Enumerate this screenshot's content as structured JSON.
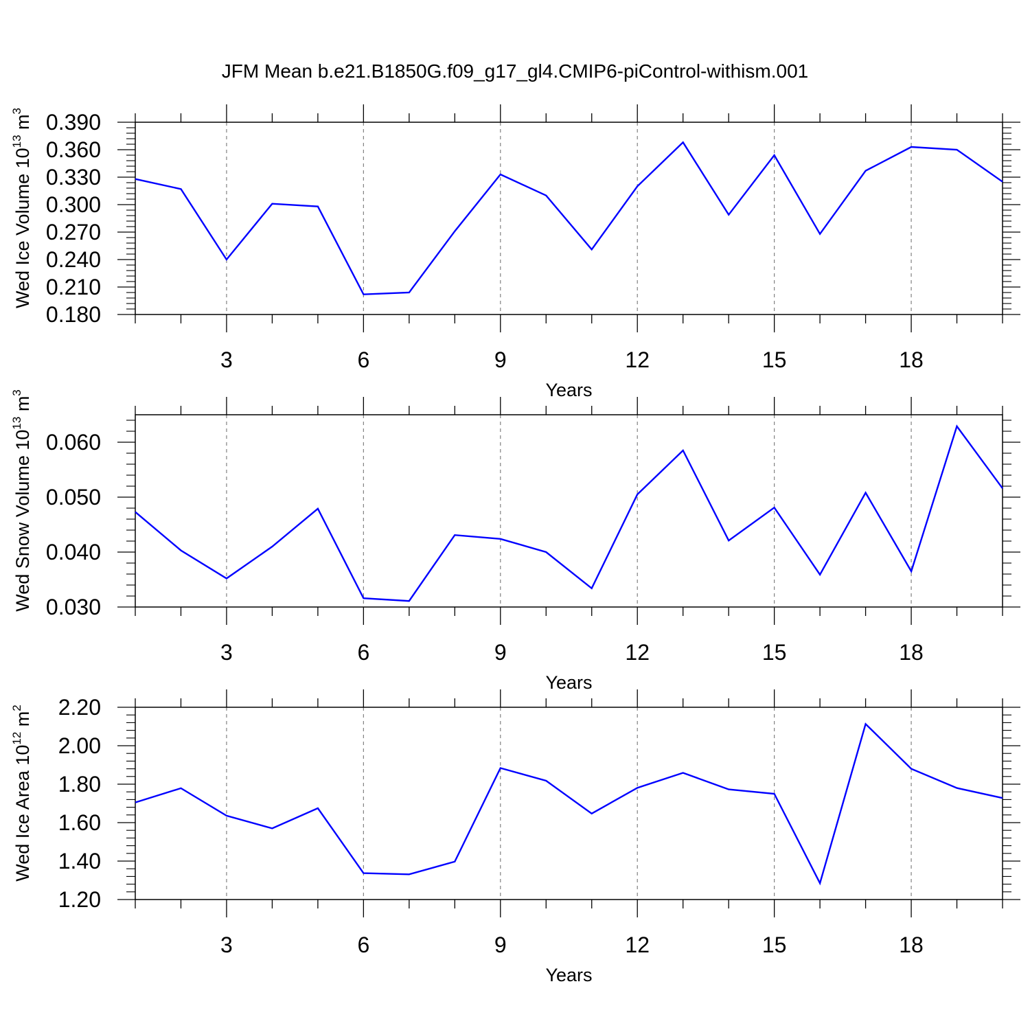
{
  "title": "JFM Mean b.e21.B1850G.f09_g17_gl4.CMIP6-piControl-withism.001",
  "colors": {
    "line": "#0000ff",
    "axis": "#000000",
    "grid": "#808080",
    "background": "#ffffff"
  },
  "chart_data": [
    {
      "type": "line",
      "ylabel": "Wed Ice Volume 10",
      "ylabel_exp": "13",
      "ylabel_unit": " m",
      "ylabel_unit_exp": "3",
      "xlabel": "Years",
      "xlim": [
        1,
        20
      ],
      "ylim": [
        0.18,
        0.39
      ],
      "x_ticks": [
        3,
        6,
        9,
        12,
        15,
        18
      ],
      "x_tick_labels": [
        "3",
        "6",
        "9",
        "12",
        "15",
        "18"
      ],
      "y_ticks": [
        0.18,
        0.21,
        0.24,
        0.27,
        0.3,
        0.33,
        0.36,
        0.39
      ],
      "y_tick_labels": [
        "0.180",
        "0.210",
        "0.240",
        "0.270",
        "0.300",
        "0.330",
        "0.360",
        "0.390"
      ],
      "grid": "vertical dashed at major x ticks",
      "x": [
        1,
        2,
        3,
        4,
        5,
        6,
        7,
        8,
        9,
        10,
        11,
        12,
        13,
        14,
        15,
        16,
        17,
        18,
        19,
        20
      ],
      "series": [
        {
          "values": [
            0.328,
            0.317,
            0.24,
            0.301,
            0.298,
            0.202,
            0.204,
            0.271,
            0.333,
            0.31,
            0.251,
            0.32,
            0.368,
            0.289,
            0.354,
            0.268,
            0.337,
            0.363,
            0.36,
            0.325
          ]
        }
      ]
    },
    {
      "type": "line",
      "ylabel": "Wed Snow Volume 10",
      "ylabel_exp": "13",
      "ylabel_unit": " m",
      "ylabel_unit_exp": "3",
      "xlabel": "Years",
      "xlim": [
        1,
        20
      ],
      "ylim": [
        0.03,
        0.065
      ],
      "x_ticks": [
        3,
        6,
        9,
        12,
        15,
        18
      ],
      "x_tick_labels": [
        "3",
        "6",
        "9",
        "12",
        "15",
        "18"
      ],
      "y_ticks": [
        0.03,
        0.04,
        0.05,
        0.06
      ],
      "y_tick_labels": [
        "0.030",
        "0.040",
        "0.050",
        "0.060"
      ],
      "grid": "vertical dashed at major x ticks",
      "x": [
        1,
        2,
        3,
        4,
        5,
        6,
        7,
        8,
        9,
        10,
        11,
        12,
        13,
        14,
        15,
        16,
        17,
        18,
        19,
        20
      ],
      "series": [
        {
          "values": [
            0.0473,
            0.0403,
            0.0352,
            0.041,
            0.0479,
            0.0316,
            0.0311,
            0.0431,
            0.0424,
            0.04,
            0.0334,
            0.0505,
            0.0585,
            0.0421,
            0.0481,
            0.0359,
            0.0508,
            0.0365,
            0.0629,
            0.0516
          ]
        }
      ]
    },
    {
      "type": "line",
      "ylabel": "Wed Ice Area 10",
      "ylabel_exp": "12",
      "ylabel_unit": " m",
      "ylabel_unit_exp": "2",
      "xlabel": "Years",
      "xlim": [
        1,
        20
      ],
      "ylim": [
        1.2,
        2.2
      ],
      "x_ticks": [
        3,
        6,
        9,
        12,
        15,
        18
      ],
      "x_tick_labels": [
        "3",
        "6",
        "9",
        "12",
        "15",
        "18"
      ],
      "y_ticks": [
        1.2,
        1.4,
        1.6,
        1.8,
        2.0,
        2.2
      ],
      "y_tick_labels": [
        "1.20",
        "1.40",
        "1.60",
        "1.80",
        "2.00",
        "2.20"
      ],
      "grid": "vertical dashed at major x ticks",
      "x": [
        1,
        2,
        3,
        4,
        5,
        6,
        7,
        8,
        9,
        10,
        11,
        12,
        13,
        14,
        15,
        16,
        17,
        18,
        19,
        20
      ],
      "series": [
        {
          "values": [
            1.705,
            1.779,
            1.636,
            1.57,
            1.675,
            1.337,
            1.331,
            1.397,
            1.884,
            1.818,
            1.647,
            1.781,
            1.859,
            1.773,
            1.75,
            1.285,
            2.113,
            1.88,
            1.78,
            1.728
          ]
        }
      ]
    }
  ]
}
